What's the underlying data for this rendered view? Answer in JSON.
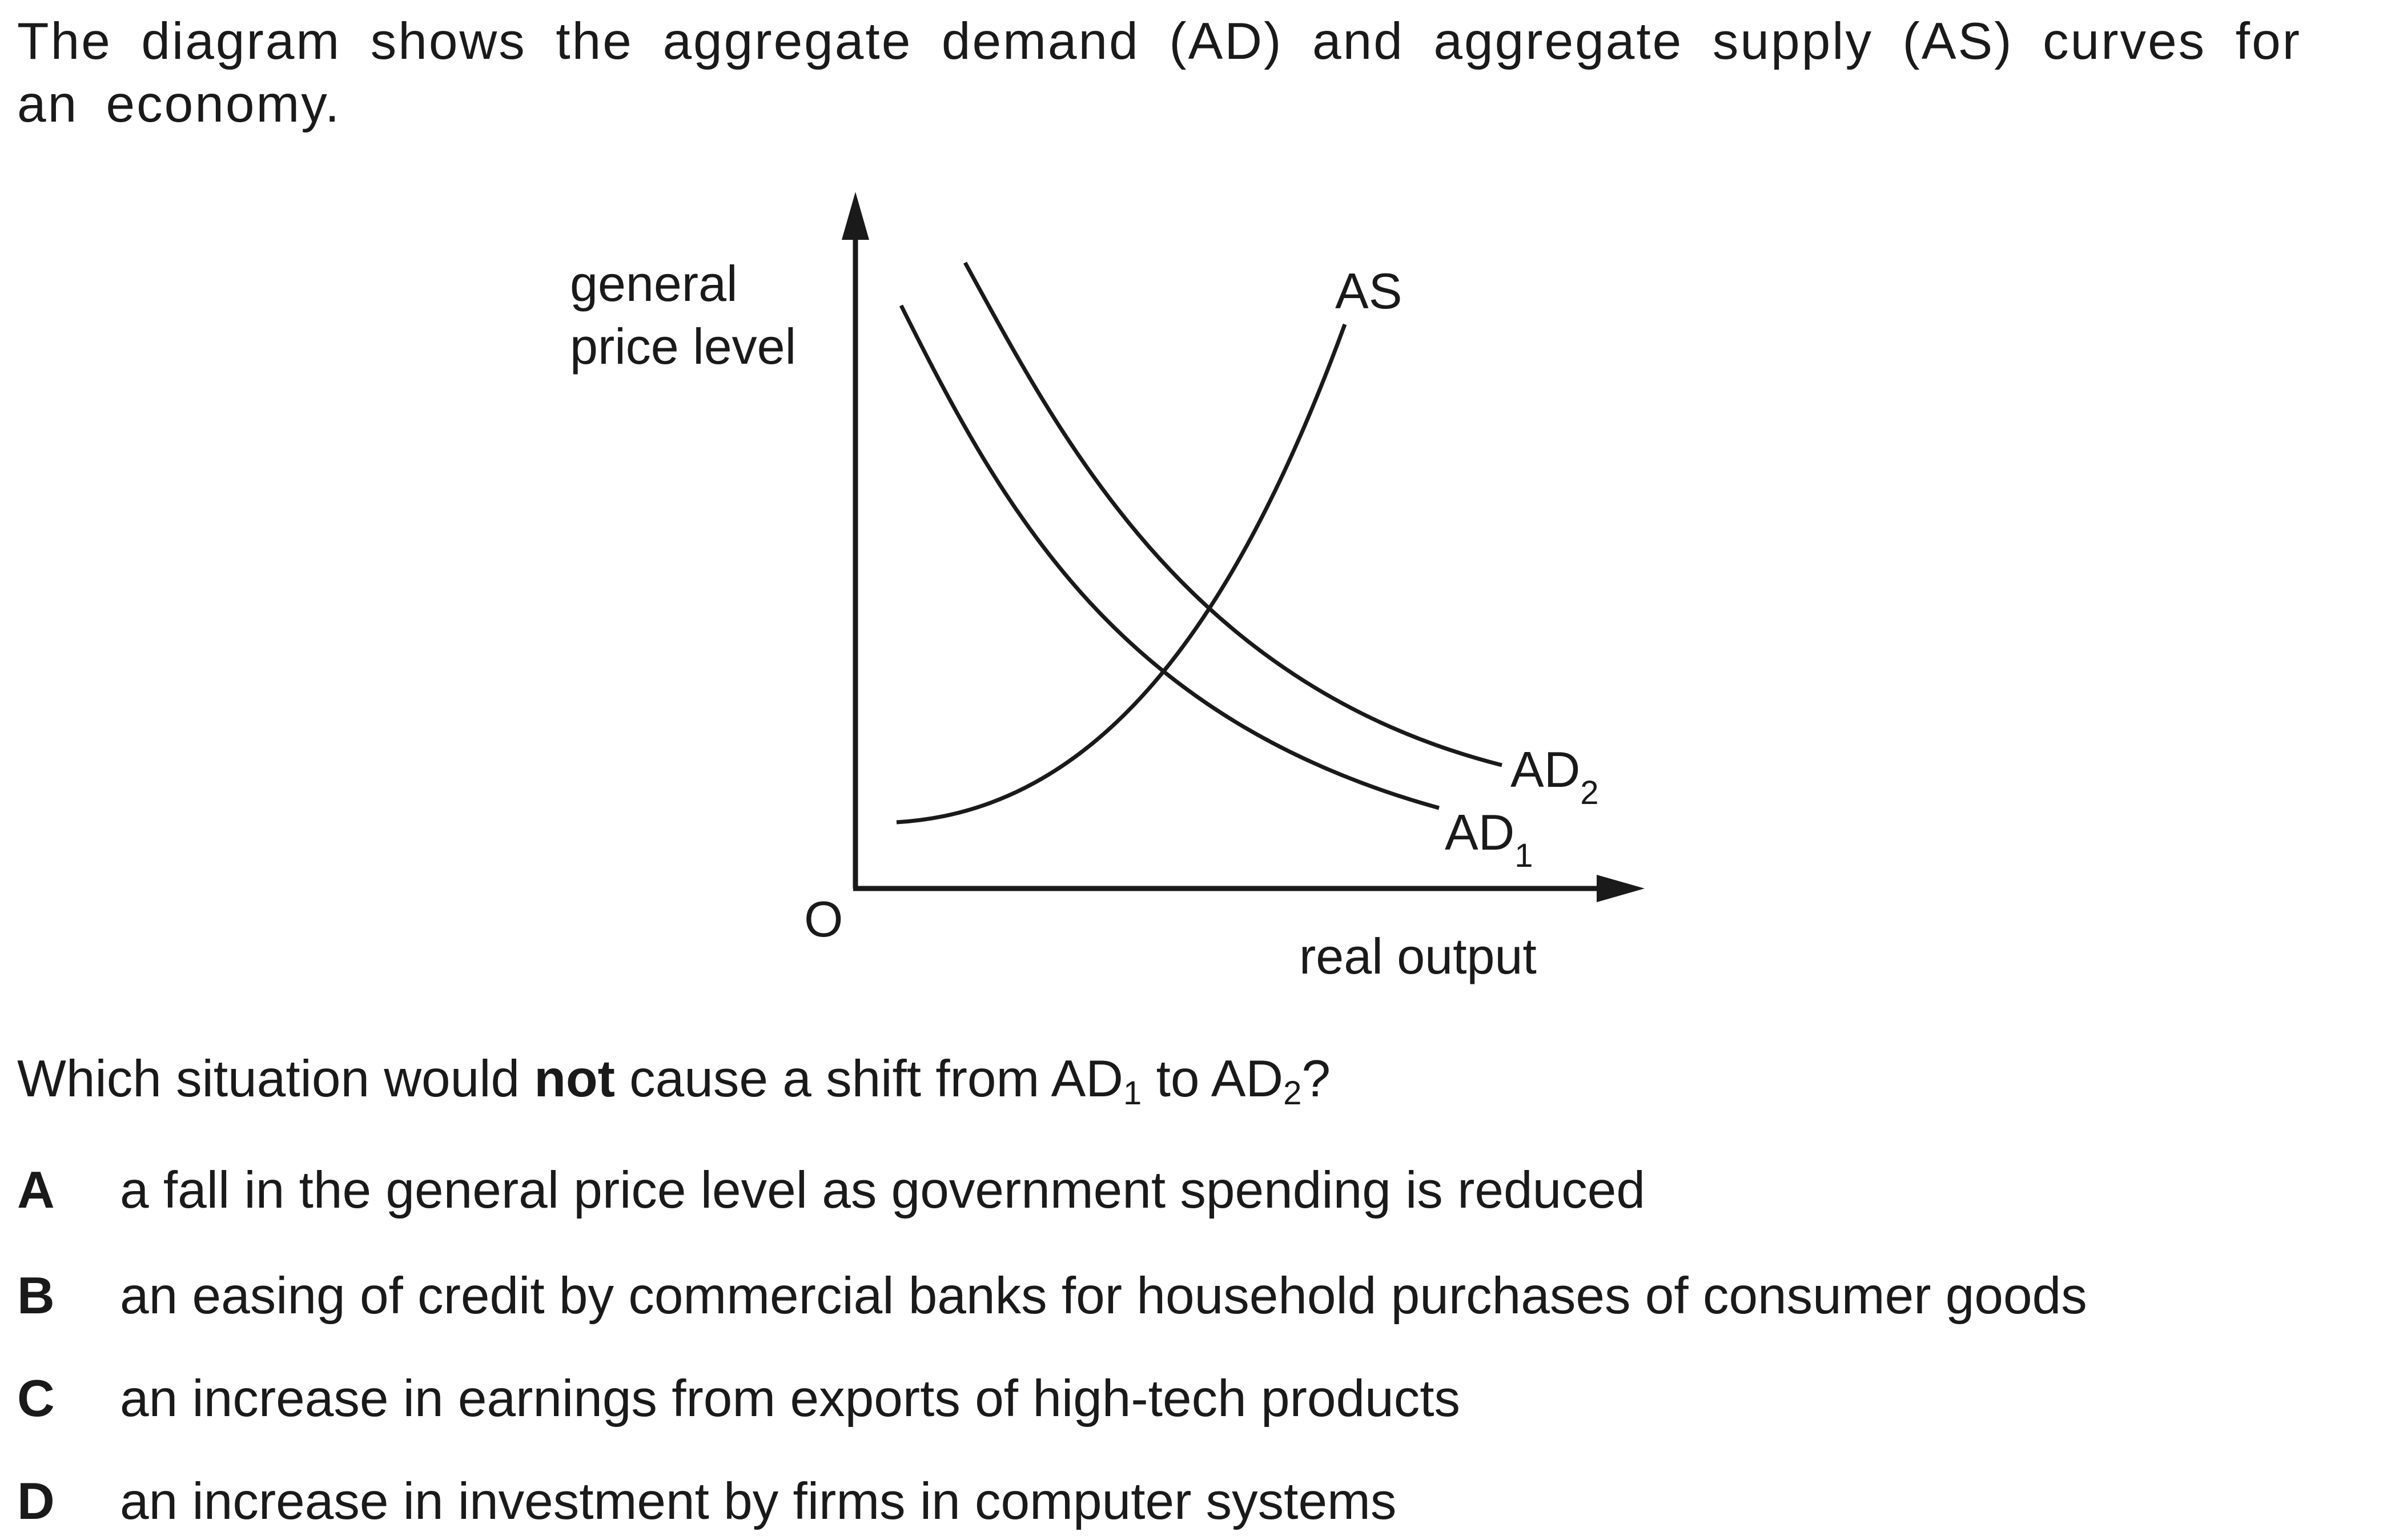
{
  "intro": "The diagram shows the aggregate demand (AD) and aggregate supply (AS) curves for an economy.",
  "diagram": {
    "y_axis_label_line1": "general",
    "y_axis_label_line2": "price level",
    "x_axis_label": "real output",
    "origin_label": "O",
    "as_label": "AS",
    "ad2_label_main": "AD",
    "ad2_label_sub": "2",
    "ad1_label_main": "AD",
    "ad1_label_sub": "1"
  },
  "question": {
    "part1": "Which situation would ",
    "bold": "not",
    "part2": " cause a shift from AD",
    "sub1": "1",
    "part3": " to AD",
    "sub2": "2",
    "part4": "?"
  },
  "options": [
    {
      "letter": "A",
      "text": "a fall in the general price level as government spending is reduced"
    },
    {
      "letter": "B",
      "text": "an easing of credit by commercial banks for household purchases of consumer goods"
    },
    {
      "letter": "C",
      "text": "an increase in earnings from exports of high-tech products"
    },
    {
      "letter": "D",
      "text": "an increase in investment by firms in computer systems"
    }
  ]
}
